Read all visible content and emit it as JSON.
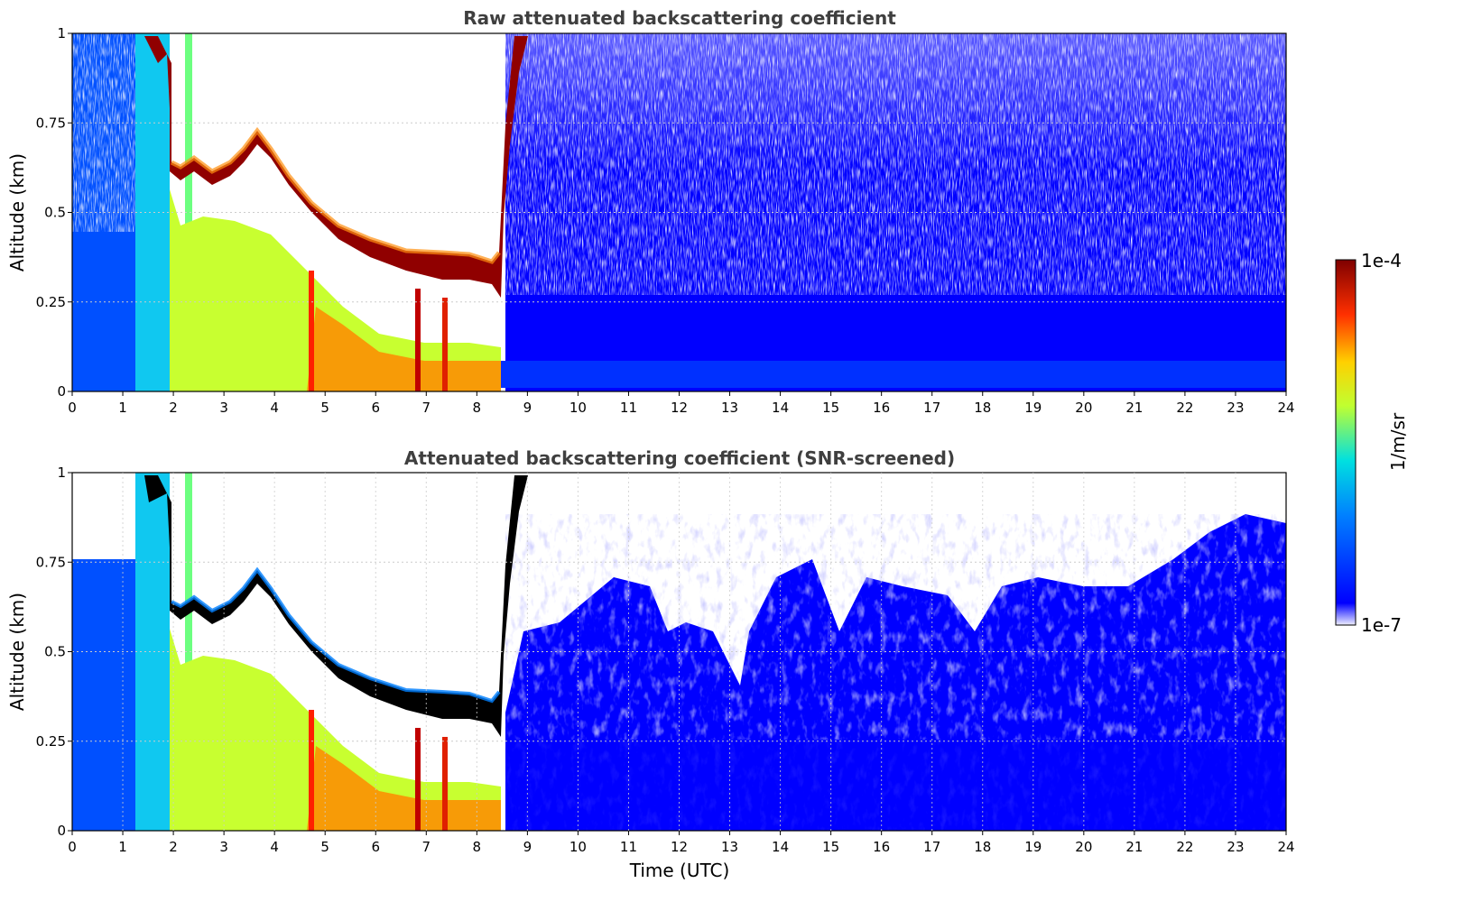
{
  "colors": {
    "jet_low": "#00007f",
    "jet_mid": "#7fff7f",
    "jet_high": "#7f0000",
    "background": "#ffffff",
    "grid": "#cccccc"
  },
  "colorbar": {
    "label": "1/m/sr",
    "top_label": "1e-4",
    "bottom_label": "1e-7",
    "min": 1e-07,
    "max": 0.0001,
    "scale": "log",
    "colormap": "jet"
  },
  "chart_data": [
    {
      "type": "heatmap",
      "title": "Raw attenuated backscattering coefficient",
      "xlabel": "",
      "ylabel": "Altitude (km)",
      "xlim": [
        0,
        24
      ],
      "ylim": [
        0,
        1
      ],
      "x_ticks": [
        "0",
        "1",
        "2",
        "3",
        "4",
        "5",
        "6",
        "7",
        "8",
        "9",
        "10",
        "11",
        "12",
        "13",
        "14",
        "15",
        "16",
        "17",
        "18",
        "19",
        "20",
        "21",
        "22",
        "23",
        "24"
      ],
      "y_ticks": [
        "0",
        "0.25",
        "0.5",
        "0.75",
        "1"
      ],
      "grid": true,
      "features": [
        {
          "x": [
            0,
            8.5
          ],
          "y": [
            0,
            0.35
          ],
          "level": "medium"
        },
        {
          "x": [
            0.3,
            1.9
          ],
          "y": [
            0,
            1.0
          ],
          "level": "medium"
        },
        {
          "x": [
            1.6,
            8.5
          ],
          "y": [
            0.15,
            0.75
          ],
          "level": "peak"
        },
        {
          "x": [
            8.5,
            24
          ],
          "y": [
            0,
            0.25
          ],
          "level": "low"
        }
      ]
    },
    {
      "type": "heatmap",
      "title": "Attenuated backscattering coefficient (SNR-screened)",
      "xlabel": "Time (UTC)",
      "ylabel": "Altitude (km)",
      "xlim": [
        0,
        24
      ],
      "ylim": [
        0,
        1
      ],
      "x_ticks": [
        "0",
        "1",
        "2",
        "3",
        "4",
        "5",
        "6",
        "7",
        "8",
        "9",
        "10",
        "11",
        "12",
        "13",
        "14",
        "15",
        "16",
        "17",
        "18",
        "19",
        "20",
        "21",
        "22",
        "23",
        "24"
      ],
      "y_ticks": [
        "0",
        "0.25",
        "0.5",
        "0.75",
        "1"
      ],
      "grid": true,
      "features": [
        {
          "x": [
            0,
            8.5
          ],
          "y": [
            0,
            0.35
          ],
          "level": "medium"
        },
        {
          "x": [
            0.3,
            1.9
          ],
          "y": [
            0,
            1.0
          ],
          "level": "medium"
        },
        {
          "x": [
            1.6,
            8.5
          ],
          "y": [
            0.15,
            0.75
          ],
          "level": "saturated (black)"
        },
        {
          "x": [
            8.5,
            24
          ],
          "y": [
            0,
            0.7
          ],
          "level": "low"
        }
      ]
    }
  ]
}
